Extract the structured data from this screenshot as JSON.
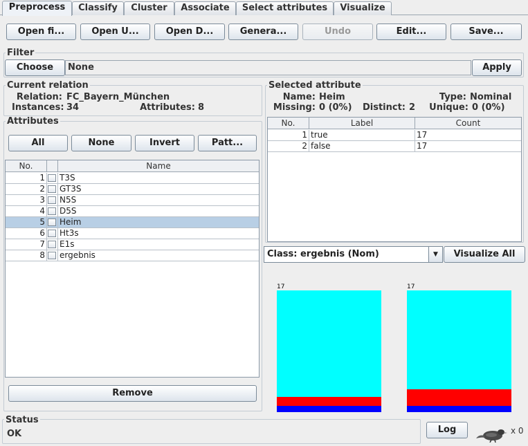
{
  "tabs": [
    "Preprocess",
    "Classify",
    "Cluster",
    "Associate",
    "Select attributes",
    "Visualize"
  ],
  "toolbar": {
    "open_file": "Open fi...",
    "open_url": "Open U...",
    "open_db": "Open D...",
    "generate": "Genera...",
    "undo": "Undo",
    "edit": "Edit...",
    "save": "Save..."
  },
  "filter": {
    "title": "Filter",
    "choose": "Choose",
    "value": "None",
    "apply": "Apply"
  },
  "current_relation": {
    "title": "Current relation",
    "relation_label": "Relation:",
    "relation_value": "FC_Bayern_München",
    "instances_label": "Instances:",
    "instances_value": "34",
    "attributes_label": "Attributes:",
    "attributes_value": "8"
  },
  "attributes": {
    "title": "Attributes",
    "buttons": {
      "all": "All",
      "none": "None",
      "invert": "Invert",
      "pattern": "Patt..."
    },
    "headers": {
      "no": "No.",
      "name": "Name"
    },
    "rows": [
      {
        "no": "1",
        "name": "T3S"
      },
      {
        "no": "2",
        "name": "GT3S"
      },
      {
        "no": "3",
        "name": "N5S"
      },
      {
        "no": "4",
        "name": "D5S"
      },
      {
        "no": "5",
        "name": "Heim"
      },
      {
        "no": "6",
        "name": "Ht3s"
      },
      {
        "no": "7",
        "name": "E1s"
      },
      {
        "no": "8",
        "name": "ergebnis"
      }
    ],
    "selected_row": "5",
    "remove": "Remove"
  },
  "selected_attribute": {
    "title": "Selected attribute",
    "name_label": "Name:",
    "name_value": "Heim",
    "type_label": "Type:",
    "type_value": "Nominal",
    "missing_label": "Missing:",
    "missing_value": "0 (0%)",
    "distinct_label": "Distinct:",
    "distinct_value": "2",
    "unique_label": "Unique:",
    "unique_value": "0 (0%)",
    "headers": {
      "no": "No.",
      "label": "Label",
      "count": "Count"
    },
    "rows": [
      {
        "no": "1",
        "label": "true",
        "count": "17"
      },
      {
        "no": "2",
        "label": "false",
        "count": "17"
      }
    ]
  },
  "class_combo": {
    "value": "Class: ergebnis (Nom)"
  },
  "visualize_all": "Visualize All",
  "histogram": {
    "max": 17,
    "colors": {
      "cyan": "#00ffff",
      "red": "#ff0000",
      "blue": "#0000ff"
    },
    "bars": [
      {
        "label": "17",
        "total": 17,
        "segments": {
          "cyan": 14.9,
          "red": 1.2,
          "blue": 0.9
        }
      },
      {
        "label": "17",
        "total": 17,
        "segments": {
          "cyan": 13.8,
          "red": 2.3,
          "blue": 0.9
        }
      }
    ]
  },
  "status": {
    "title": "Status",
    "text": "OK",
    "log": "Log",
    "count": "x 0"
  }
}
